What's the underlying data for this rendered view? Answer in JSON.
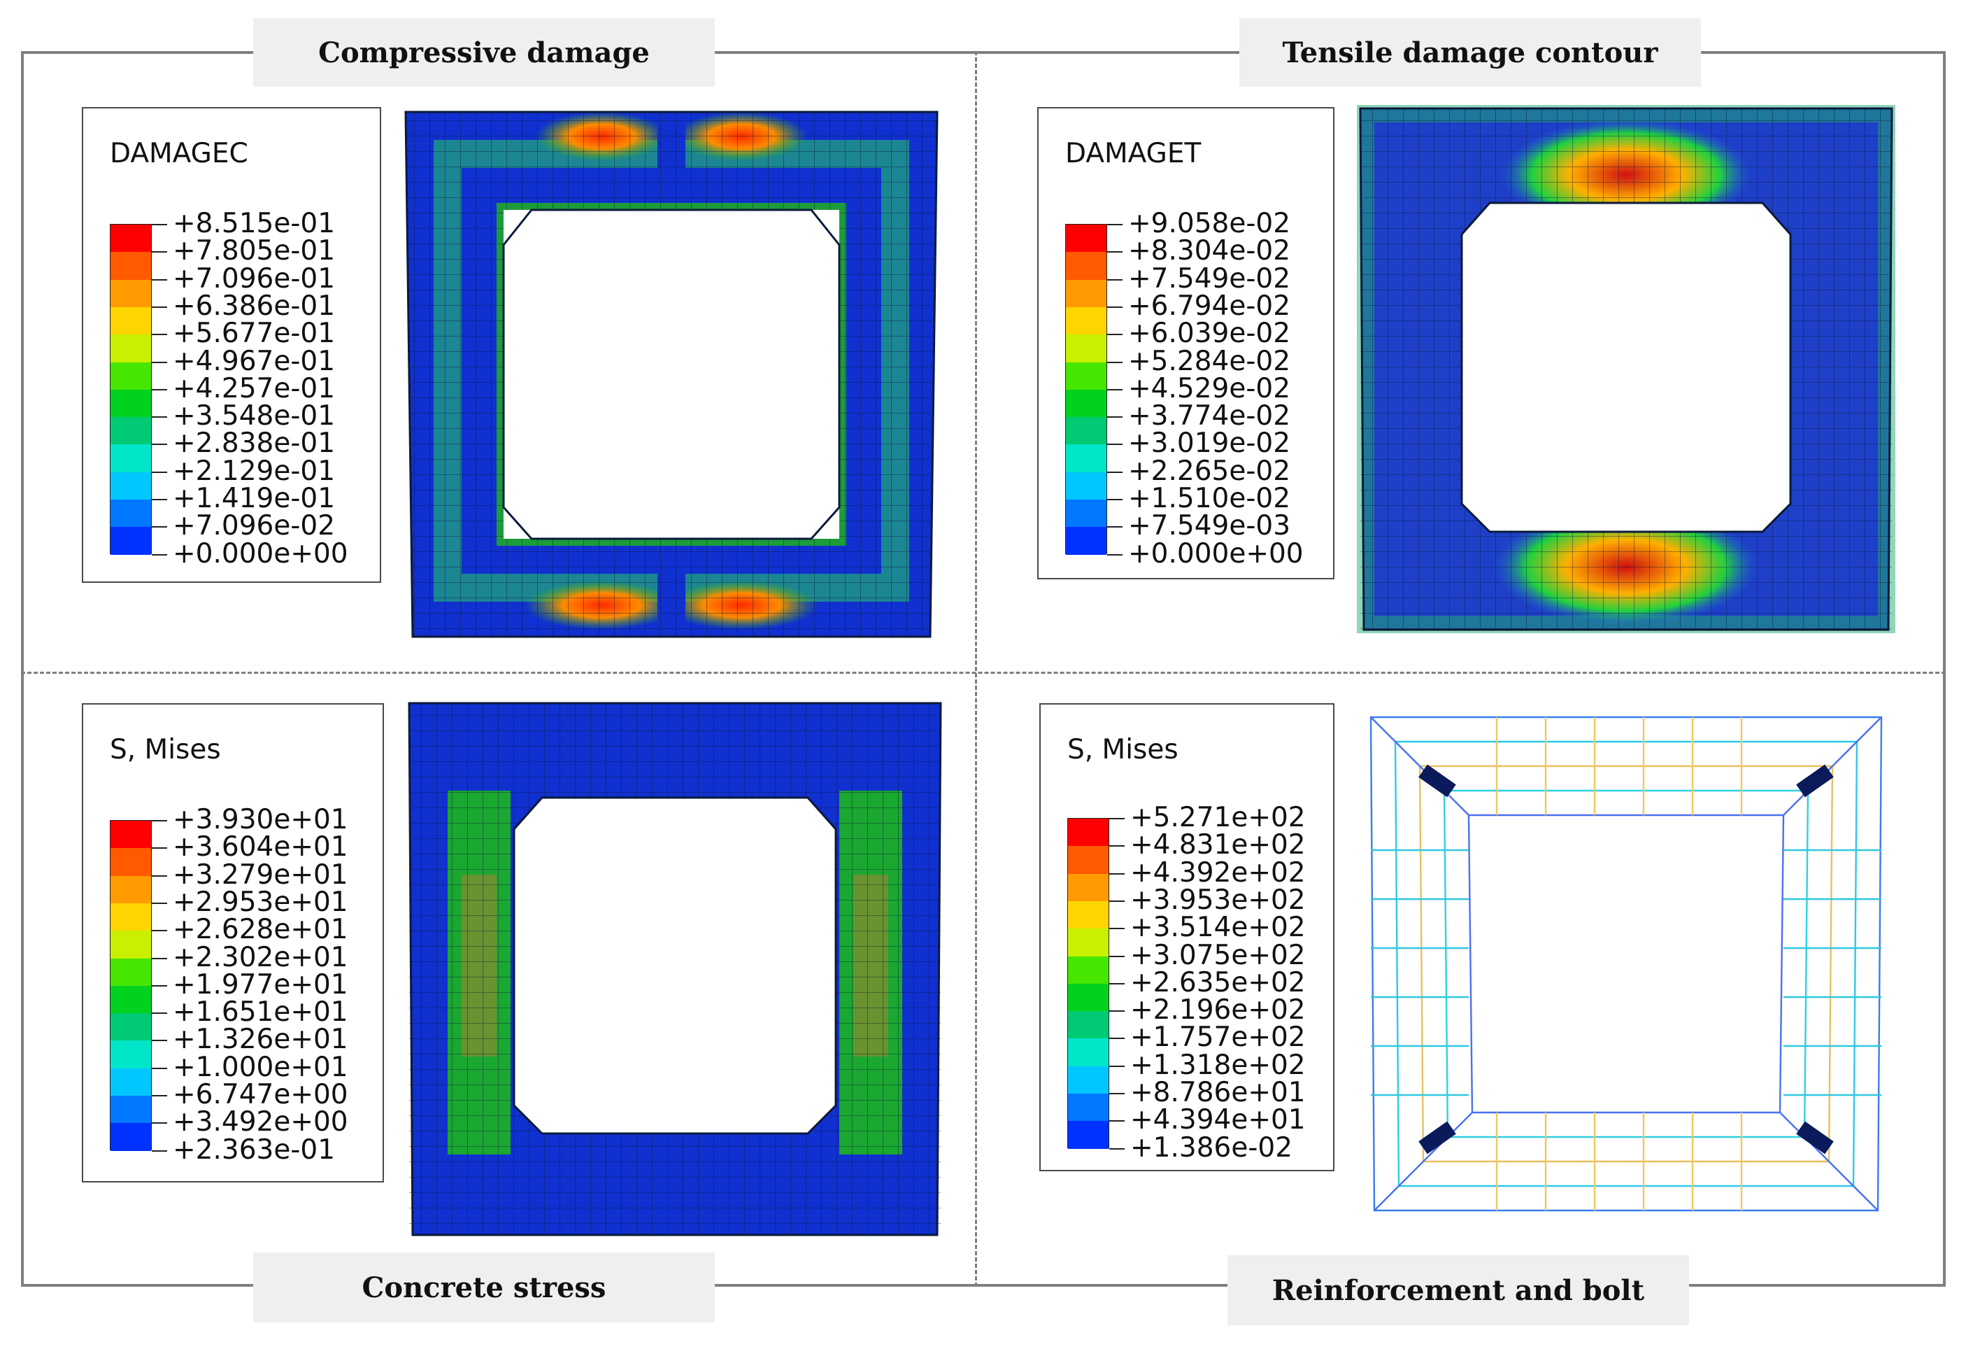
{
  "panels": [
    {
      "id": "compressive",
      "title": "Compressive damage",
      "legend": {
        "variable": "DAMAGEC",
        "values": [
          "+8.515e-01",
          "+7.805e-01",
          "+7.096e-01",
          "+6.386e-01",
          "+5.677e-01",
          "+4.967e-01",
          "+4.257e-01",
          "+3.548e-01",
          "+2.838e-01",
          "+2.129e-01",
          "+1.419e-01",
          "+7.096e-02",
          "+0.000e+00"
        ]
      }
    },
    {
      "id": "tensile",
      "title": "Tensile damage contour",
      "legend": {
        "variable": "DAMAGET",
        "values": [
          "+9.058e-02",
          "+8.304e-02",
          "+7.549e-02",
          "+6.794e-02",
          "+6.039e-02",
          "+5.284e-02",
          "+4.529e-02",
          "+3.774e-02",
          "+3.019e-02",
          "+2.265e-02",
          "+1.510e-02",
          "+7.549e-03",
          "+0.000e+00"
        ]
      }
    },
    {
      "id": "concrete",
      "title": "Concrete stress",
      "legend": {
        "variable": "S, Mises",
        "values": [
          "+3.930e+01",
          "+3.604e+01",
          "+3.279e+01",
          "+2.953e+01",
          "+2.628e+01",
          "+2.302e+01",
          "+1.977e+01",
          "+1.651e+01",
          "+1.326e+01",
          "+1.000e+01",
          "+6.747e+00",
          "+3.492e+00",
          "+2.363e-01"
        ]
      }
    },
    {
      "id": "reinforcement",
      "title": "Reinforcement and bolt",
      "legend": {
        "variable": "S, Mises",
        "values": [
          "+5.271e+02",
          "+4.831e+02",
          "+4.392e+02",
          "+3.953e+02",
          "+3.514e+02",
          "+3.075e+02",
          "+2.635e+02",
          "+2.196e+02",
          "+1.757e+02",
          "+1.318e+02",
          "+8.786e+01",
          "+4.394e+01",
          "+1.386e-02"
        ]
      }
    }
  ],
  "colormap": [
    "#ff0000",
    "#ff5a00",
    "#ff9b00",
    "#ffd500",
    "#c8f000",
    "#46e600",
    "#00d21e",
    "#00ca73",
    "#00e6c8",
    "#00c8ff",
    "#0078ff",
    "#0032ff",
    "#0000e6"
  ]
}
